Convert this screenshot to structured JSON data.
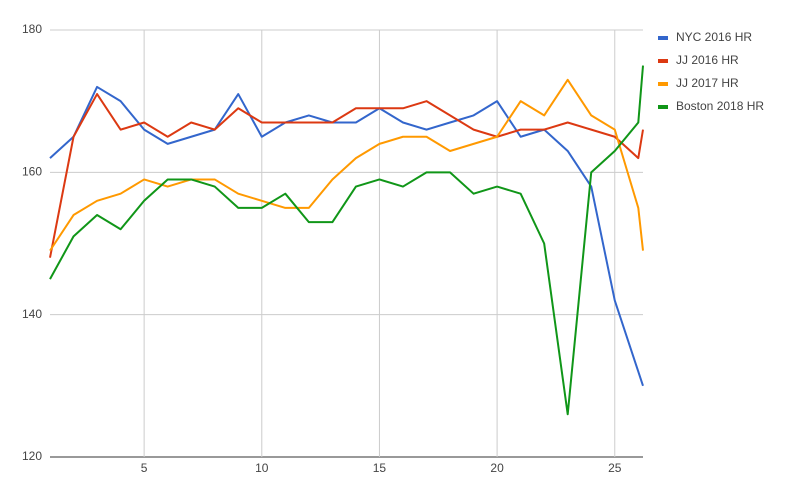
{
  "chart_data": {
    "type": "line",
    "x": [
      1,
      2,
      3,
      4,
      5,
      6,
      7,
      8,
      9,
      10,
      11,
      12,
      13,
      14,
      15,
      16,
      17,
      18,
      19,
      20,
      21,
      22,
      23,
      24,
      25,
      26,
      26.2
    ],
    "series": [
      {
        "name": "NYC 2016 HR",
        "color": "#3366cc",
        "values": [
          162,
          165,
          172,
          170,
          166,
          164,
          165,
          166,
          171,
          165,
          167,
          168,
          167,
          167,
          169,
          167,
          166,
          167,
          168,
          170,
          165,
          166,
          163,
          158,
          142,
          132,
          130
        ]
      },
      {
        "name": "JJ 2016 HR",
        "color": "#dc3912",
        "values": [
          148,
          165,
          171,
          166,
          167,
          165,
          167,
          166,
          169,
          167,
          167,
          167,
          167,
          169,
          169,
          169,
          170,
          168,
          166,
          165,
          166,
          166,
          167,
          166,
          165,
          162,
          166
        ]
      },
      {
        "name": "JJ 2017 HR",
        "color": "#ff9900",
        "values": [
          149,
          154,
          156,
          157,
          159,
          158,
          159,
          159,
          157,
          156,
          155,
          155,
          159,
          162,
          164,
          165,
          165,
          163,
          164,
          165,
          170,
          168,
          173,
          168,
          166,
          155,
          149
        ]
      },
      {
        "name": "Boston 2018 HR",
        "color": "#109618",
        "values": [
          145,
          151,
          154,
          152,
          156,
          159,
          159,
          158,
          155,
          155,
          157,
          153,
          153,
          158,
          159,
          158,
          160,
          160,
          157,
          158,
          157,
          150,
          126,
          160,
          163,
          167,
          175
        ]
      }
    ],
    "xlim": [
      1,
      26.2
    ],
    "xticks": [
      5,
      10,
      15,
      20,
      25
    ],
    "ylim": [
      120,
      180
    ],
    "yticks": [
      120,
      140,
      160,
      180
    ],
    "grid": true,
    "legend": "right"
  }
}
